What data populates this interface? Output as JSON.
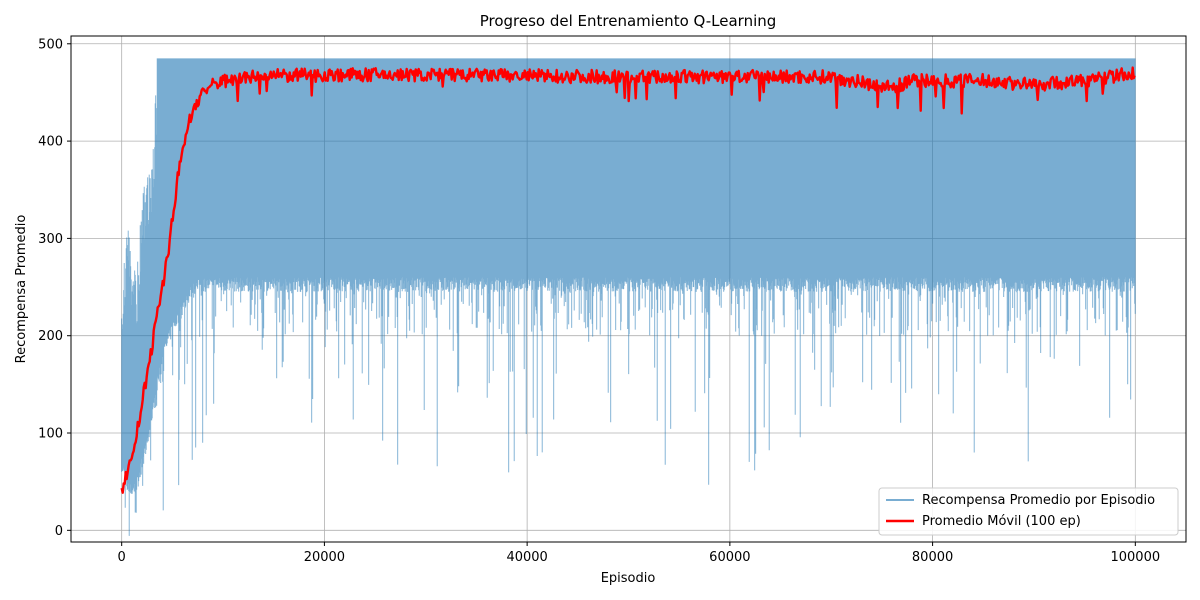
{
  "chart_data": {
    "type": "line",
    "title": "Progreso del Entrenamiento Q-Learning",
    "xlabel": "Episodio",
    "ylabel": "Recompensa Promedio",
    "xlim": [
      -5000,
      105000
    ],
    "ylim": [
      -12,
      508
    ],
    "x_ticks": [
      0,
      20000,
      40000,
      60000,
      80000,
      100000
    ],
    "y_ticks": [
      0,
      100,
      200,
      300,
      400,
      500
    ],
    "grid": true,
    "legend_position": "bottom-right",
    "series": [
      {
        "name": "Recompensa Promedio por Episodio",
        "color": "#1f77b4",
        "style": "thin line, alpha 0.6",
        "x": [
          0,
          500,
          1000,
          1500,
          2000,
          2500,
          3000,
          3500,
          4000,
          5000,
          6000,
          7000,
          8000,
          10000,
          15000,
          20000,
          30000,
          40000,
          50000,
          60000,
          70000,
          80000,
          90000,
          100000
        ],
        "upper": [
          235,
          322,
          285,
          265,
          340,
          375,
          372,
          485,
          485,
          485,
          485,
          485,
          485,
          485,
          485,
          485,
          485,
          485,
          485,
          485,
          485,
          485,
          485,
          485
        ],
        "lower": [
          -12,
          -12,
          -12,
          -12,
          -12,
          -12,
          -12,
          10,
          20,
          15,
          25,
          60,
          90,
          100,
          120,
          100,
          45,
          35,
          70,
          30,
          110,
          95,
          50,
          90
        ],
        "typical_low": [
          60,
          40,
          30,
          40,
          60,
          80,
          110,
          140,
          170,
          200,
          220,
          240,
          245,
          245,
          245,
          245,
          245,
          245,
          245,
          245,
          245,
          245,
          245,
          245
        ]
      },
      {
        "name": "Promedio Móvil (100 ep)",
        "color": "#ff0000",
        "style": "thick line",
        "x": [
          0,
          500,
          1000,
          1500,
          2000,
          2500,
          3000,
          3500,
          4000,
          4500,
          5000,
          5500,
          6000,
          6500,
          7000,
          7500,
          8000,
          9000,
          10000,
          12000,
          15000,
          20000,
          30000,
          40000,
          50000,
          60000,
          70000,
          76000,
          78000,
          85000,
          90000,
          95000,
          100000
        ],
        "values": [
          42,
          58,
          75,
          100,
          130,
          160,
          190,
          220,
          250,
          280,
          320,
          360,
          390,
          415,
          430,
          442,
          450,
          458,
          462,
          465,
          467,
          468,
          468,
          467,
          466,
          466,
          466,
          455,
          462,
          462,
          458,
          462,
          470
        ]
      }
    ]
  }
}
